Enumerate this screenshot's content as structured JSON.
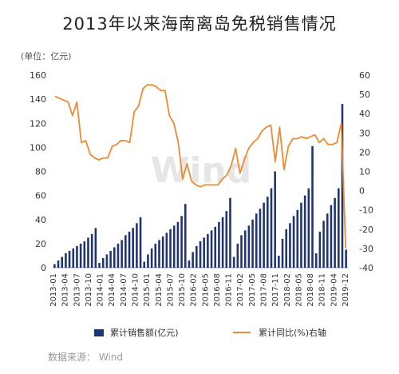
{
  "title": "2013年以来海南离岛免税销售情况",
  "unit_label": "(单位：亿元)",
  "legend_bar": "累计销售额(亿元)",
  "legend_line": "累计同比(%)右轴",
  "source": "数据来源：   Wind",
  "watermark": "Wind",
  "colors": {
    "bar": "#1f3470",
    "line": "#ee8a33",
    "axis": "#999999",
    "text": "#333333"
  },
  "chart_data": {
    "type": "bar+line",
    "title": "2013年以来海南离岛免税销售情况",
    "left_axis": {
      "ylim": [
        0,
        160
      ],
      "ticks": [
        0,
        20,
        40,
        60,
        80,
        100,
        120,
        140,
        160
      ]
    },
    "right_axis": {
      "ylim": [
        -40,
        60
      ],
      "ticks": [
        -40,
        -30,
        -20,
        -10,
        0,
        10,
        20,
        30,
        40,
        50,
        60
      ]
    },
    "x_tick_labels": [
      "2013-01",
      "2013-04",
      "2013-07",
      "2013-10",
      "2014-01",
      "2014-04",
      "2014-07",
      "2014-10",
      "2015-01",
      "2015-04",
      "2015-07",
      "2015-10",
      "2016-02",
      "2016-05",
      "2016-08",
      "2016-11",
      "2017-02",
      "2017-05",
      "2017-08",
      "2017-11",
      "2018-02",
      "2018-05",
      "2018-08",
      "2018-11",
      "2019-04",
      "2019-12"
    ],
    "series": [
      {
        "name": "累计销售额(亿元)",
        "type": "bar",
        "axis": "left",
        "values": [
          3,
          6,
          9,
          12,
          14,
          16,
          18,
          20,
          22,
          25,
          28,
          33,
          4,
          8,
          11,
          14,
          17,
          20,
          23,
          27,
          30,
          33,
          37,
          42,
          5,
          11,
          16,
          20,
          23,
          26,
          29,
          32,
          35,
          38,
          43,
          53,
          6,
          13,
          18,
          22,
          25,
          28,
          31,
          34,
          38,
          42,
          47,
          58,
          9,
          20,
          27,
          31,
          35,
          40,
          45,
          49,
          54,
          59,
          66,
          80,
          10,
          24,
          32,
          37,
          43,
          48,
          54,
          60,
          66,
          101,
          12,
          30,
          39,
          45,
          52,
          58,
          66,
          136,
          15
        ]
      },
      {
        "name": "累计同比(%)右轴",
        "type": "line",
        "axis": "right",
        "values": [
          49,
          48,
          47,
          46,
          39,
          46,
          25,
          26,
          19,
          17,
          16,
          17,
          17,
          23,
          24,
          26,
          26,
          25,
          41,
          44,
          53,
          55,
          55,
          54,
          52,
          52,
          39,
          35,
          25,
          6,
          14,
          5,
          3,
          2,
          3,
          3,
          3,
          3,
          6,
          8,
          13,
          22,
          9,
          16,
          22,
          25,
          27,
          31,
          33,
          34,
          15,
          33,
          11,
          23,
          27,
          27,
          28,
          27,
          28,
          29,
          25,
          27,
          24,
          24,
          25,
          35,
          -30
        ]
      }
    ]
  }
}
